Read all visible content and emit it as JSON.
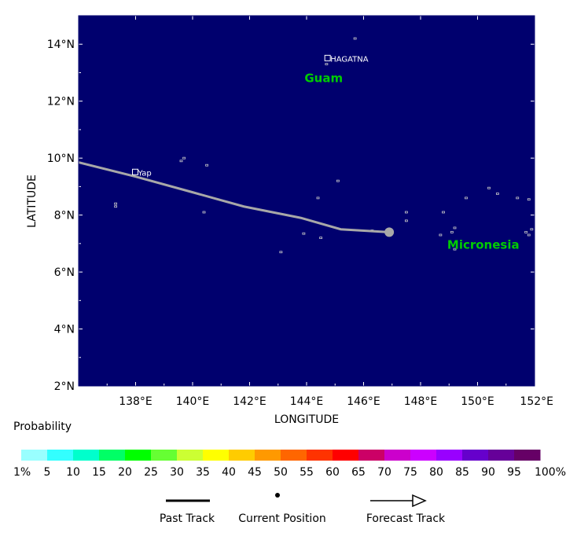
{
  "map": {
    "background_color": "#00006e",
    "land_outline_color": "#c8c8c8",
    "track_color": "#a8a8a8",
    "lon_range": [
      136,
      152
    ],
    "lat_range": [
      2,
      15
    ],
    "x_ticks": [
      {
        "value": 138,
        "label": "138°E"
      },
      {
        "value": 140,
        "label": "140°E"
      },
      {
        "value": 142,
        "label": "142°E"
      },
      {
        "value": 144,
        "label": "144°E"
      },
      {
        "value": 146,
        "label": "146°E"
      },
      {
        "value": 148,
        "label": "148°E"
      },
      {
        "value": 150,
        "label": "150°E"
      },
      {
        "value": 152,
        "label": "152°E"
      }
    ],
    "y_ticks": [
      {
        "value": 2,
        "label": "2°N"
      },
      {
        "value": 4,
        "label": "4°N"
      },
      {
        "value": 6,
        "label": "6°N"
      },
      {
        "value": 8,
        "label": "8°N"
      },
      {
        "value": 10,
        "label": "10°N"
      },
      {
        "value": 12,
        "label": "12°N"
      },
      {
        "value": 14,
        "label": "14°N"
      }
    ],
    "xlabel": "LONGITUDE",
    "ylabel": "LATITUDE",
    "past_track": [
      {
        "lon": 136.0,
        "lat": 9.85
      },
      {
        "lon": 138.0,
        "lat": 9.35
      },
      {
        "lon": 140.0,
        "lat": 8.8
      },
      {
        "lon": 141.8,
        "lat": 8.3
      },
      {
        "lon": 143.8,
        "lat": 7.9
      },
      {
        "lon": 145.2,
        "lat": 7.5
      },
      {
        "lon": 146.9,
        "lat": 7.4
      }
    ],
    "current_position": {
      "lon": 146.9,
      "lat": 7.4
    },
    "cities": [
      {
        "name": "HAGATNA",
        "lon": 144.75,
        "lat": 13.5
      },
      {
        "name": "Yap",
        "lon": 138.0,
        "lat": 9.5
      }
    ],
    "regions": [
      {
        "name": "Guam",
        "lon": 144.6,
        "lat": 12.8,
        "color": "#00cc00"
      },
      {
        "name": "Micronesia",
        "lon": 150.2,
        "lat": 6.95,
        "color": "#00cc00"
      }
    ],
    "islands": [
      [
        144.7,
        13.3
      ],
      [
        145.7,
        14.2
      ],
      [
        139.7,
        10.0
      ],
      [
        139.6,
        9.9
      ],
      [
        140.5,
        9.75
      ],
      [
        145.1,
        9.2
      ],
      [
        144.4,
        8.6
      ],
      [
        137.3,
        8.4
      ],
      [
        137.3,
        8.3
      ],
      [
        140.4,
        8.1
      ],
      [
        147.5,
        8.1
      ],
      [
        148.8,
        8.1
      ],
      [
        150.4,
        8.95
      ],
      [
        150.7,
        8.75
      ],
      [
        149.6,
        8.6
      ],
      [
        151.4,
        8.6
      ],
      [
        151.8,
        8.55
      ],
      [
        149.2,
        7.55
      ],
      [
        149.1,
        7.4
      ],
      [
        143.9,
        7.35
      ],
      [
        144.5,
        7.2
      ],
      [
        146.3,
        7.45
      ],
      [
        151.7,
        7.4
      ],
      [
        151.8,
        7.3
      ],
      [
        149.2,
        6.8
      ],
      [
        143.1,
        6.7
      ],
      [
        147.5,
        7.8
      ],
      [
        148.7,
        7.3
      ],
      [
        151.9,
        7.5
      ]
    ]
  },
  "legend": {
    "title": "Probability",
    "colors": [
      "#99ffff",
      "#33ffff",
      "#00ffcc",
      "#00ff66",
      "#00ff00",
      "#66ff33",
      "#ccff33",
      "#ffff00",
      "#ffcc00",
      "#ff9900",
      "#ff6600",
      "#ff3300",
      "#ff0000",
      "#cc0066",
      "#cc00cc",
      "#cc00ff",
      "#9900ff",
      "#6600cc",
      "#660099",
      "#660066"
    ],
    "labels": [
      "1%",
      "5",
      "10",
      "15",
      "20",
      "25",
      "30",
      "35",
      "40",
      "45",
      "50",
      "55",
      "60",
      "65",
      "70",
      "75",
      "80",
      "85",
      "90",
      "95",
      "100%"
    ]
  },
  "track_key": {
    "past": "Past Track",
    "current": "Current Position",
    "forecast": "Forecast Track"
  }
}
